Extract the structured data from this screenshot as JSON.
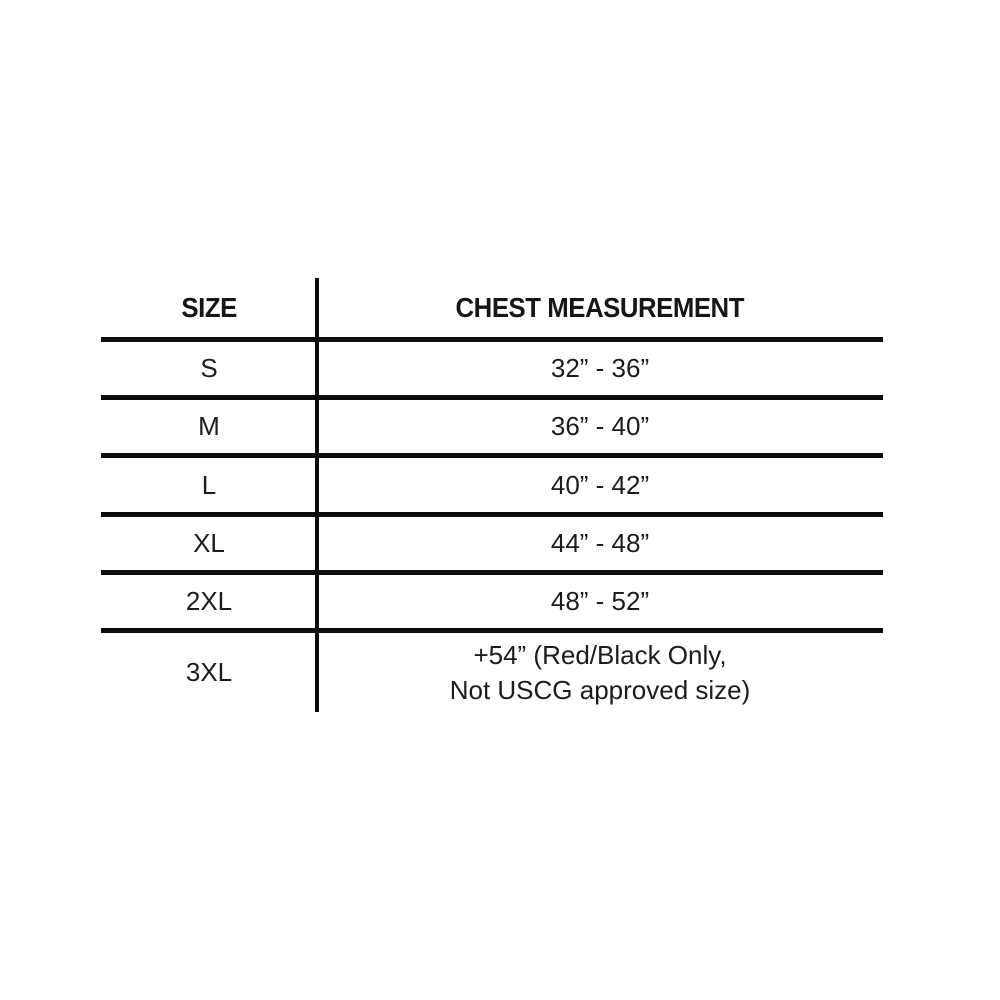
{
  "chart_data": {
    "type": "table",
    "title": "",
    "columns": [
      "SIZE",
      "CHEST MEASUREMENT"
    ],
    "rows": [
      [
        "S",
        "32” - 36”"
      ],
      [
        "M",
        "36” - 40”"
      ],
      [
        "L",
        "40” - 42”"
      ],
      [
        "XL",
        "44” - 48”"
      ],
      [
        "2XL",
        "48” - 52”"
      ],
      [
        "3XL",
        "+54” (Red/Black Only, Not USCG approved size)"
      ]
    ],
    "layout": {
      "background": "#ffffff",
      "rule_color": "#0c0c0c",
      "horizontal_rules": "below header and below each row except last",
      "vertical_rule": "single divider between columns spanning full table height"
    }
  },
  "table": {
    "header_size": "SIZE",
    "header_chest": "CHEST MEASUREMENT",
    "rows": [
      {
        "size": "S",
        "chest": "32” - 36”"
      },
      {
        "size": "M",
        "chest": "36” - 40”"
      },
      {
        "size": "L",
        "chest": "40” - 42”"
      },
      {
        "size": "XL",
        "chest": "44” - 48”"
      },
      {
        "size": "2XL",
        "chest": "48” - 52”"
      },
      {
        "size": "3XL",
        "chest": "+54” (Red/Black Only,\nNot USCG approved size)"
      }
    ],
    "colors": {
      "text": "#1c1c1c",
      "rules": "#0c0c0c",
      "background": "#ffffff"
    }
  }
}
